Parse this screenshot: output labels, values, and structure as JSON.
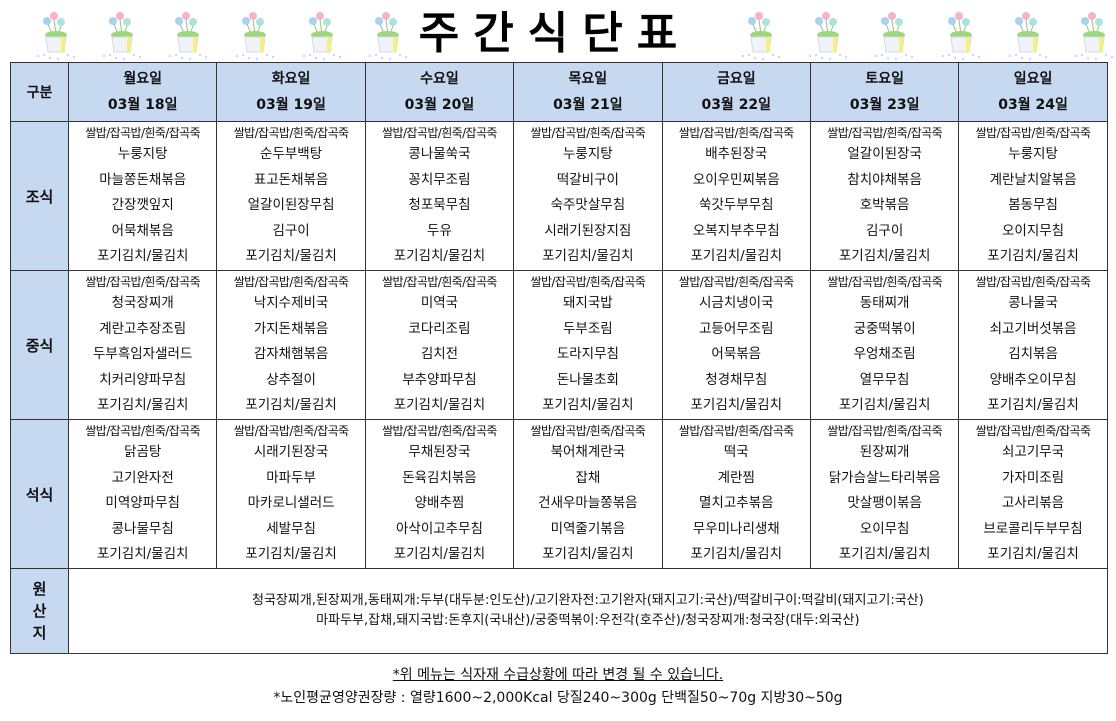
{
  "title": "주간식단표",
  "colors": {
    "header_bg": "#c6d9f0",
    "border": "#333333"
  },
  "decor_icon": "flower-pot-icon",
  "header": {
    "category_label": "구분"
  },
  "days": [
    {
      "name": "월요일",
      "date": "03월 18일"
    },
    {
      "name": "화요일",
      "date": "03월 19일"
    },
    {
      "name": "수요일",
      "date": "03월 20일"
    },
    {
      "name": "목요일",
      "date": "03월 21일"
    },
    {
      "name": "금요일",
      "date": "03월 22일"
    },
    {
      "name": "토요일",
      "date": "03월 23일"
    },
    {
      "name": "일요일",
      "date": "03월 24일"
    }
  ],
  "staple": "쌀밥/잡곡밥/흰죽/잡곡죽",
  "meals": [
    {
      "label": "조식",
      "menus": [
        [
          "누룽지탕",
          "마늘쫑돈채볶음",
          "간장깻잎지",
          "어묵채볶음",
          "포기김치/물김치"
        ],
        [
          "순두부백탕",
          "표고돈채볶음",
          "얼갈이된장무침",
          "김구이",
          "포기김치/물김치"
        ],
        [
          "콩나물쑥국",
          "꽁치무조림",
          "청포묵무침",
          "두유",
          "포기김치/물김치"
        ],
        [
          "누룽지탕",
          "떡갈비구이",
          "숙주맛살무침",
          "시래기된장지짐",
          "포기김치/물김치"
        ],
        [
          "배추된장국",
          "오이우민찌볶음",
          "쑥갓두부무침",
          "오복지부추무침",
          "포기김치/물김치"
        ],
        [
          "얼갈이된장국",
          "참치야채볶음",
          "호박볶음",
          "김구이",
          "포기김치/물김치"
        ],
        [
          "누룽지탕",
          "계란날치알볶음",
          "봄동무침",
          "오이지무침",
          "포기김치/물김치"
        ]
      ]
    },
    {
      "label": "중식",
      "menus": [
        [
          "청국장찌개",
          "계란고추장조림",
          "두부흑임자샐러드",
          "치커리양파무침",
          "포기김치/물김치"
        ],
        [
          "낙지수제비국",
          "가지돈채볶음",
          "감자채햄볶음",
          "상추절이",
          "포기김치/물김치"
        ],
        [
          "미역국",
          "코다리조림",
          "김치전",
          "부추양파무침",
          "포기김치/물김치"
        ],
        [
          "돼지국밥",
          "두부조림",
          "도라지무침",
          "돈나물초회",
          "포기김치/물김치"
        ],
        [
          "시금치냉이국",
          "고등어무조림",
          "어묵볶음",
          "청경채무침",
          "포기김치/물김치"
        ],
        [
          "동태찌개",
          "궁중떡볶이",
          "우엉채조림",
          "열무무침",
          "포기김치/물김치"
        ],
        [
          "콩나물국",
          "쇠고기버섯볶음",
          "김치볶음",
          "양배추오이무침",
          "포기김치/물김치"
        ]
      ]
    },
    {
      "label": "석식",
      "menus": [
        [
          "닭곰탕",
          "고기완자전",
          "미역양파무침",
          "콩나물무침",
          "포기김치/물김치"
        ],
        [
          "시래기된장국",
          "마파두부",
          "마카로니샐러드",
          "세발무침",
          "포기김치/물김치"
        ],
        [
          "무채된장국",
          "돈육김치볶음",
          "양배추찜",
          "아삭이고추무침",
          "포기김치/물김치"
        ],
        [
          "북어채계란국",
          "잡채",
          "건새우마늘쫑볶음",
          "미역줄기볶음",
          "포기김치/물김치"
        ],
        [
          "떡국",
          "계란찜",
          "멸치고추볶음",
          "무우미나리생채",
          "포기김치/물김치"
        ],
        [
          "된장찌개",
          "닭가슴살느타리볶음",
          "맛살팽이볶음",
          "오이무침",
          "포기김치/물김치"
        ],
        [
          "쇠고기무국",
          "가자미조림",
          "고사리볶음",
          "브로콜리두부무침",
          "포기김치/물김치"
        ]
      ]
    }
  ],
  "origin": {
    "label": [
      "원",
      "산",
      "지"
    ],
    "lines": [
      "청국장찌개,된장찌개,동태찌개:두부(대두분:인도산)/고기완자전:고기완자(돼지고기:국산)/떡갈비구이:떡갈비(돼지고기:국산)",
      "마파두부,잡채,돼지국밥:돈후지(국내산)/궁중떡볶이:우전각(호주산)/청국장찌개:청국장(대두:외국산)"
    ]
  },
  "footer": {
    "notice": "*위 메뉴는 식자재 수급상황에 따라 변경 될 수 있습니다.",
    "nutrition": "*노인평균영양권장량 : 열량1600~2,000Kcal 당질240~300g 단백질50~70g 지방30~50g"
  }
}
